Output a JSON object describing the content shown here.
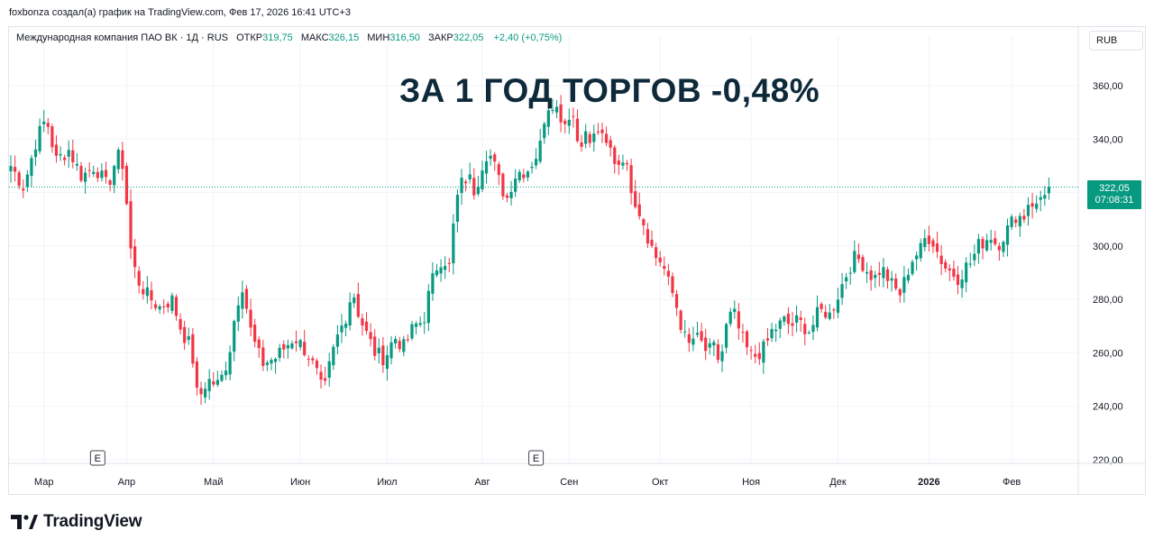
{
  "attribution": "foxbonza создал(а) график на TradingView.com, Фев 17, 2026 16:41 UTC+3",
  "legend": {
    "symbol": "Международная компания ПАО ВК · 1Д · RUS",
    "open_label": "ОТКР",
    "open": "319,75",
    "high_label": "МАКС",
    "high": "326,15",
    "low_label": "МИН",
    "low": "316,50",
    "close_label": "ЗАКР",
    "close": "322,05",
    "change": "+2,40 (+0,75%)"
  },
  "currency": "RUB",
  "headline": "ЗА 1 ГОД ТОРГОВ -0,48%",
  "last_price": {
    "price": "322,05",
    "countdown": "07:08:31"
  },
  "brand": "TradingView",
  "colors": {
    "up": "#089981",
    "down": "#f23645",
    "grid": "#f0f3fa",
    "badge": "#089981"
  },
  "chart_data": {
    "type": "candlestick",
    "y_ticks": [
      "360,00",
      "340,00",
      "320,00",
      "300,00",
      "280,00",
      "260,00",
      "240,00",
      "220,00"
    ],
    "y_tick_values": [
      360,
      340,
      320,
      300,
      280,
      260,
      240,
      220
    ],
    "ylim": [
      218,
      368
    ],
    "x_ticks": [
      {
        "label": "Мар",
        "bold": false
      },
      {
        "label": "Апр",
        "bold": false
      },
      {
        "label": "Май",
        "bold": false
      },
      {
        "label": "Июн",
        "bold": false
      },
      {
        "label": "Июл",
        "bold": false
      },
      {
        "label": "Авг",
        "bold": false
      },
      {
        "label": "Сен",
        "bold": false
      },
      {
        "label": "Окт",
        "bold": false
      },
      {
        "label": "Ноя",
        "bold": false
      },
      {
        "label": "Дек",
        "bold": false
      },
      {
        "label": "2026",
        "bold": true
      },
      {
        "label": "Фев",
        "bold": false
      }
    ],
    "earnings_markers": [
      {
        "label": "E",
        "date": "2025-03-20"
      },
      {
        "label": "E",
        "date": "2025-08-07"
      }
    ],
    "last_price": 322.05,
    "price_path": [
      [
        0,
        330
      ],
      [
        4,
        322
      ],
      [
        8,
        340
      ],
      [
        11,
        348
      ],
      [
        14,
        332
      ],
      [
        18,
        336
      ],
      [
        22,
        326
      ],
      [
        26,
        330
      ],
      [
        30,
        322
      ],
      [
        33,
        334
      ],
      [
        35,
        330
      ],
      [
        37,
        300
      ],
      [
        39,
        288
      ],
      [
        42,
        282
      ],
      [
        46,
        277
      ],
      [
        50,
        280
      ],
      [
        53,
        268
      ],
      [
        56,
        262
      ],
      [
        58,
        242
      ],
      [
        61,
        250
      ],
      [
        64,
        248
      ],
      [
        66,
        252
      ],
      [
        68,
        262
      ],
      [
        70,
        278
      ],
      [
        72,
        286
      ],
      [
        74,
        270
      ],
      [
        76,
        262
      ],
      [
        78,
        256
      ],
      [
        82,
        258
      ],
      [
        85,
        262
      ],
      [
        88,
        266
      ],
      [
        92,
        260
      ],
      [
        95,
        252
      ],
      [
        97,
        244
      ],
      [
        99,
        256
      ],
      [
        101,
        265
      ],
      [
        104,
        274
      ],
      [
        106,
        284
      ],
      [
        108,
        274
      ],
      [
        110,
        268
      ],
      [
        113,
        260
      ],
      [
        116,
        258
      ],
      [
        119,
        266
      ],
      [
        122,
        262
      ],
      [
        125,
        270
      ],
      [
        128,
        272
      ],
      [
        130,
        284
      ],
      [
        132,
        292
      ],
      [
        134,
        296
      ],
      [
        136,
        292
      ],
      [
        138,
        316
      ],
      [
        140,
        324
      ],
      [
        142,
        326
      ],
      [
        144,
        320
      ],
      [
        146,
        330
      ],
      [
        148,
        336
      ],
      [
        150,
        330
      ],
      [
        152,
        322
      ],
      [
        154,
        318
      ],
      [
        156,
        326
      ],
      [
        158,
        328
      ],
      [
        160,
        328
      ],
      [
        162,
        332
      ],
      [
        164,
        336
      ],
      [
        166,
        352
      ],
      [
        168,
        354
      ],
      [
        170,
        350
      ],
      [
        172,
        346
      ],
      [
        174,
        352
      ],
      [
        176,
        338
      ],
      [
        178,
        342
      ],
      [
        180,
        338
      ],
      [
        182,
        344
      ],
      [
        184,
        338
      ],
      [
        186,
        336
      ],
      [
        188,
        330
      ],
      [
        190,
        334
      ],
      [
        192,
        324
      ],
      [
        194,
        316
      ],
      [
        196,
        310
      ],
      [
        198,
        302
      ],
      [
        200,
        296
      ],
      [
        202,
        294
      ],
      [
        204,
        286
      ],
      [
        206,
        280
      ],
      [
        208,
        270
      ],
      [
        210,
        262
      ],
      [
        212,
        266
      ],
      [
        214,
        264
      ],
      [
        216,
        260
      ],
      [
        218,
        262
      ],
      [
        220,
        256
      ],
      [
        222,
        270
      ],
      [
        224,
        276
      ],
      [
        226,
        268
      ],
      [
        228,
        262
      ],
      [
        230,
        258
      ],
      [
        232,
        260
      ],
      [
        234,
        262
      ],
      [
        236,
        268
      ],
      [
        238,
        270
      ],
      [
        240,
        272
      ],
      [
        242,
        270
      ],
      [
        244,
        272
      ],
      [
        246,
        270
      ],
      [
        248,
        268
      ],
      [
        250,
        274
      ],
      [
        252,
        276
      ],
      [
        254,
        274
      ],
      [
        256,
        280
      ],
      [
        258,
        286
      ],
      [
        260,
        292
      ],
      [
        262,
        296
      ],
      [
        264,
        294
      ],
      [
        266,
        290
      ],
      [
        268,
        288
      ],
      [
        270,
        292
      ],
      [
        272,
        288
      ],
      [
        274,
        284
      ],
      [
        276,
        282
      ],
      [
        278,
        290
      ],
      [
        280,
        296
      ],
      [
        282,
        298
      ],
      [
        284,
        304
      ],
      [
        286,
        302
      ],
      [
        288,
        296
      ],
      [
        290,
        292
      ],
      [
        292,
        290
      ],
      [
        294,
        288
      ],
      [
        296,
        292
      ],
      [
        298,
        294
      ],
      [
        300,
        300
      ],
      [
        302,
        302
      ],
      [
        304,
        304
      ],
      [
        306,
        300
      ],
      [
        308,
        304
      ],
      [
        310,
        308
      ],
      [
        312,
        312
      ],
      [
        314,
        310
      ],
      [
        316,
        318
      ],
      [
        318,
        314
      ],
      [
        320,
        320
      ],
      [
        322,
        322
      ]
    ]
  }
}
